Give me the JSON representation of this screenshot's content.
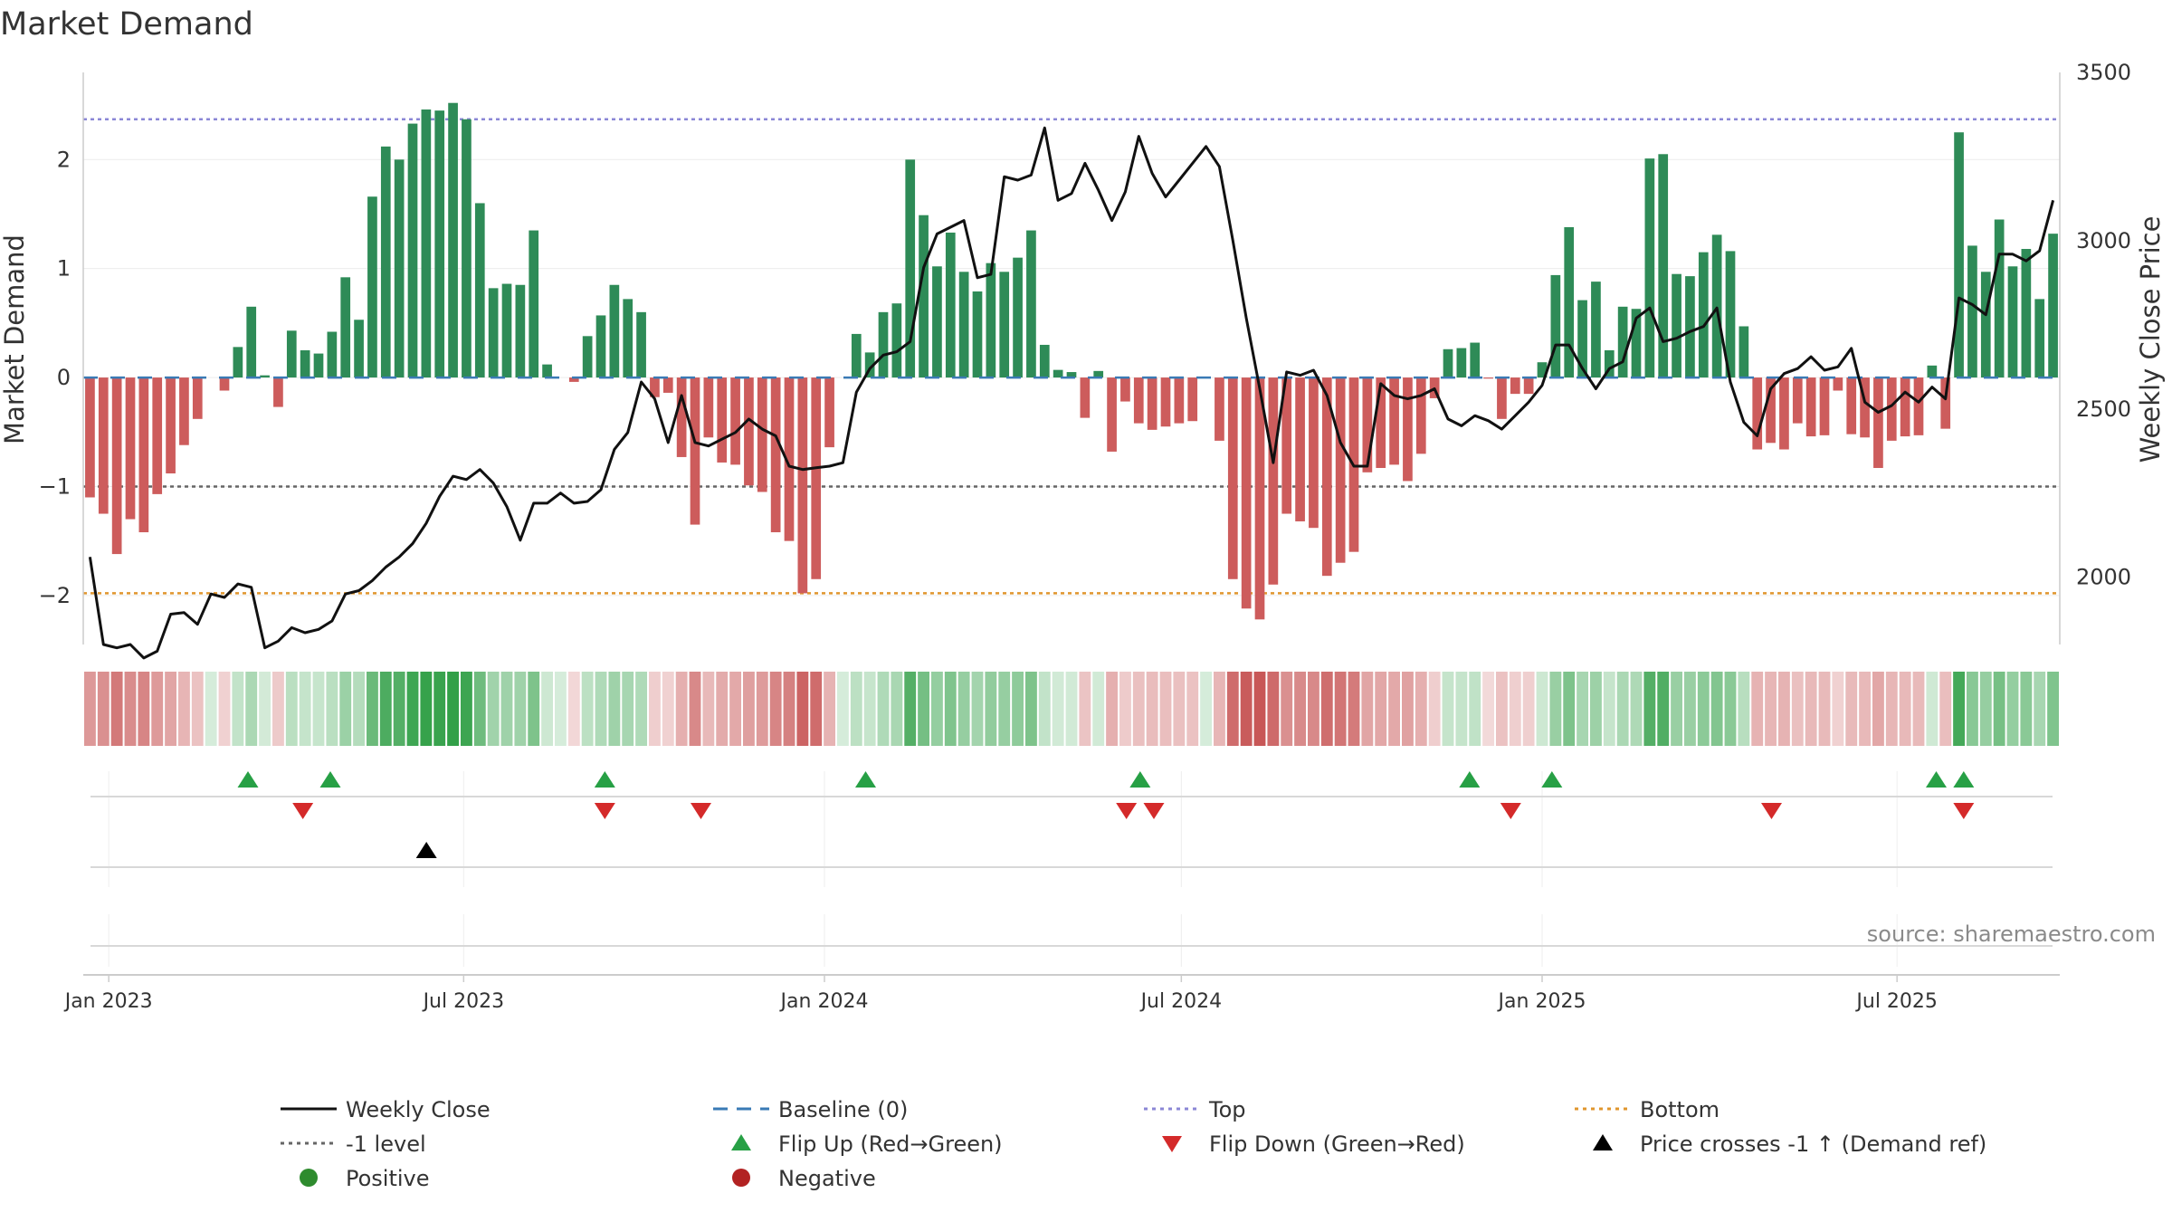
{
  "chart_data": {
    "type": "bar",
    "title": "Market Demand",
    "ylabel": "Market Demand",
    "y2label": "Weekly Close Price",
    "ylim": [
      -2.45,
      2.8
    ],
    "y2lim": [
      1800,
      3500
    ],
    "yticks": [
      "2",
      "1",
      "0",
      "−1",
      "−2"
    ],
    "ytick_values": [
      2,
      1,
      0,
      -1,
      -2
    ],
    "y2ticks": [
      "3500",
      "3000",
      "2500",
      "2000"
    ],
    "y2tick_values": [
      3500,
      3000,
      2500,
      2000
    ],
    "x_start": "2022-12-19",
    "x_end": "2025-09-22",
    "date_ticks": [
      {
        "label": "Jan 2023",
        "date": "2023-01-01"
      },
      {
        "label": "Jul 2023",
        "date": "2023-07-01"
      },
      {
        "label": "Jan 2024",
        "date": "2024-01-01"
      },
      {
        "label": "Jul 2024",
        "date": "2024-07-01"
      },
      {
        "label": "Jan 2025",
        "date": "2025-01-01"
      },
      {
        "label": "Jul 2025",
        "date": "2025-07-01"
      }
    ],
    "levels": {
      "top": 2.37,
      "minus_one": -1.0,
      "bottom": -1.98,
      "baseline": 0
    },
    "weekly_close": [
      2060,
      1800,
      1790,
      1800,
      1760,
      1780,
      1890,
      1895,
      1860,
      1950,
      1940,
      1980,
      1970,
      1790,
      1810,
      1850,
      1835,
      1845,
      1870,
      1950,
      1960,
      1990,
      2030,
      2060,
      2100,
      2160,
      2240,
      2300,
      2290,
      2320,
      2280,
      2210,
      2110,
      2220,
      2220,
      2250,
      2220,
      2225,
      2260,
      2380,
      2430,
      2580,
      2530,
      2400,
      2540,
      2400,
      2390,
      2410,
      2430,
      2470,
      2440,
      2420,
      2330,
      2320,
      2325,
      2330,
      2340,
      2550,
      2620,
      2660,
      2670,
      2700,
      2920,
      3020,
      3040,
      3060,
      2890,
      2900,
      3190,
      3180,
      3195,
      3335,
      3120,
      3140,
      3230,
      3150,
      3060,
      3145,
      3310,
      3200,
      3130,
      3180,
      3230,
      3280,
      3220,
      3000,
      2770,
      2560,
      2340,
      2610,
      2600,
      2615,
      2540,
      2400,
      2330,
      2330,
      2575,
      2540,
      2530,
      2540,
      2560,
      2470,
      2450,
      2480,
      2465,
      2440,
      2480,
      2520,
      2570,
      2690,
      2690,
      2620,
      2560,
      2620,
      2640,
      2770,
      2800,
      2700,
      2710,
      2730,
      2745,
      2800,
      2580,
      2460,
      2420,
      2560,
      2605,
      2620,
      2655,
      2615,
      2625,
      2680,
      2520,
      2490,
      2510,
      2550,
      2520,
      2565,
      2530,
      2830,
      2810,
      2780,
      2960,
      2960,
      2940,
      2970,
      3120
    ],
    "demand": [
      -1.1,
      -1.25,
      -1.62,
      -1.3,
      -1.42,
      -1.07,
      -0.88,
      -0.62,
      -0.38,
      0,
      -0.12,
      0.28,
      0.65,
      0.02,
      -0.27,
      0.43,
      0.25,
      0.22,
      0.42,
      0.92,
      0.53,
      1.66,
      2.12,
      2.0,
      2.33,
      2.46,
      2.45,
      2.52,
      2.37,
      1.6,
      0.82,
      0.86,
      0.85,
      1.35,
      0.12,
      0,
      -0.04,
      0.38,
      0.57,
      0.85,
      0.72,
      0.6,
      -0.18,
      -0.14,
      -0.73,
      -1.35,
      -0.55,
      -0.78,
      -0.8,
      -0.99,
      -1.05,
      -1.42,
      -1.5,
      -1.98,
      -1.85,
      -0.64,
      0,
      0.4,
      0.23,
      0.6,
      0.68,
      2.0,
      1.49,
      1.02,
      1.33,
      0.97,
      0.79,
      1.05,
      0.97,
      1.1,
      1.35,
      0.3,
      0.07,
      0.05,
      -0.37,
      0.06,
      -0.68,
      -0.22,
      -0.42,
      -0.48,
      -0.45,
      -0.42,
      -0.4,
      0,
      -0.58,
      -1.85,
      -2.12,
      -2.22,
      -1.9,
      -1.25,
      -1.32,
      -1.38,
      -1.82,
      -1.7,
      -1.6,
      -0.87,
      -0.83,
      -0.8,
      -0.95,
      -0.7,
      -0.19,
      0.26,
      0.27,
      0.32,
      -0.01,
      -0.38,
      -0.15,
      -0.15,
      0.14,
      0.94,
      1.38,
      0.71,
      0.88,
      0.25,
      0.65,
      0.63,
      2.01,
      2.05,
      0.95,
      0.93,
      1.15,
      1.31,
      1.16,
      0.47,
      -0.66,
      -0.6,
      -0.66,
      -0.42,
      -0.54,
      -0.53,
      -0.12,
      -0.52,
      -0.55,
      -0.83,
      -0.58,
      -0.54,
      -0.53,
      0.11,
      -0.47,
      2.25,
      1.21,
      0.97,
      1.45,
      1.02,
      1.18,
      0.72,
      1.32
    ],
    "flip_up": [
      "2023-03-13",
      "2023-04-24",
      "2023-09-11",
      "2024-01-22",
      "2024-06-10",
      "2024-11-25",
      "2025-01-06",
      "2025-07-21",
      "2025-08-04"
    ],
    "flip_down": [
      "2023-04-10",
      "2023-09-11",
      "2023-10-30",
      "2024-06-03",
      "2024-06-17",
      "2024-12-16",
      "2025-04-28",
      "2025-08-04"
    ],
    "price_cross": [
      "2023-06-12"
    ],
    "legend": [
      {
        "label": "Weekly Close",
        "kind": "line",
        "color": "#111111"
      },
      {
        "label": "Baseline (0)",
        "kind": "dash",
        "color": "#3a7ab5"
      },
      {
        "label": "Top",
        "kind": "dot",
        "color": "#8b87d6"
      },
      {
        "label": "Bottom",
        "kind": "dot",
        "color": "#e0962e"
      },
      {
        "label": "-1 level",
        "kind": "dot",
        "color": "#666666"
      },
      {
        "label": "Flip Up (Red→Green)",
        "kind": "tri-up",
        "color": "#27a045"
      },
      {
        "label": "Flip Down (Green→Red)",
        "kind": "tri-down",
        "color": "#d42a2a"
      },
      {
        "label": "Price crosses -1 ↑ (Demand ref)",
        "kind": "tri-up",
        "color": "#000000"
      },
      {
        "label": "Positive",
        "kind": "circle",
        "color": "#2e8b2e"
      },
      {
        "label": "Negative",
        "kind": "circle",
        "color": "#b22222"
      }
    ],
    "source": "source: sharemaestro.com"
  },
  "colors": {
    "positive_bar": "#2e8b57",
    "negative_bar": "#cd5c5c",
    "price_line": "#111111",
    "top_line": "#8b87d6",
    "minus_one_line": "#666666",
    "bottom_line": "#e0962e",
    "baseline": "#3a7ab5",
    "heat_pos": "#2e9e44",
    "heat_neg": "#c04040",
    "axis": "#cccccc",
    "grid": "#ececec"
  }
}
